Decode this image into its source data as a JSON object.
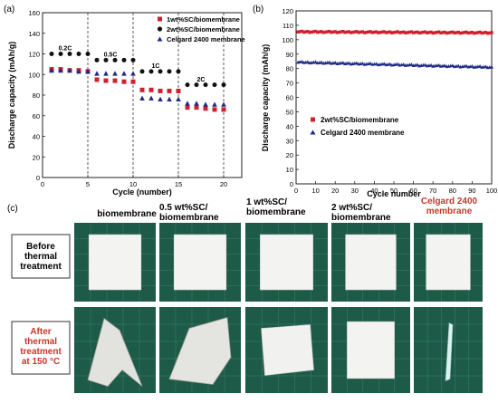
{
  "panels": {
    "a": "(a)",
    "b": "(b)",
    "c": "(c)"
  },
  "colors": {
    "sc1": "#d0202e",
    "sc2": "#111111",
    "celgard": "#1e2a86",
    "mat": "#1d5a48",
    "red_text": "#c0392b"
  },
  "chart_data": [
    {
      "type": "scatter",
      "xlabel": "Cycle (number)",
      "ylabel": "Discharge capacity (mAh/g)",
      "xlim": [
        0,
        22
      ],
      "ylim": [
        0,
        160
      ],
      "xticks": [
        0,
        5,
        10,
        15,
        20
      ],
      "yticks": [
        0,
        20,
        40,
        60,
        80,
        100,
        120,
        140,
        160
      ],
      "grid": false,
      "legend_position": "top-right",
      "rate_labels": [
        {
          "text": "0.2C",
          "x": 2.5,
          "y": 126
        },
        {
          "text": "0.5C",
          "x": 7.5,
          "y": 120
        },
        {
          "text": "1C",
          "x": 12.5,
          "y": 109
        },
        {
          "text": "2C",
          "x": 17.5,
          "y": 96
        }
      ],
      "dividers": [
        5,
        10,
        15,
        20
      ],
      "series": [
        {
          "name": "1wt%SC/biomembrane",
          "marker": "square",
          "color": "#d0202e",
          "x": [
            1,
            2,
            3,
            4,
            5,
            6,
            7,
            8,
            9,
            10,
            11,
            12,
            13,
            14,
            15,
            16,
            17,
            18,
            19,
            20
          ],
          "y": [
            105,
            105,
            104,
            104,
            103,
            95,
            94,
            94,
            93,
            93,
            85,
            85,
            84,
            84,
            84,
            68,
            68,
            67,
            66,
            66
          ]
        },
        {
          "name": "2wt%SC/biomembrane",
          "marker": "circle",
          "color": "#111111",
          "x": [
            1,
            2,
            3,
            4,
            5,
            6,
            7,
            8,
            9,
            10,
            11,
            12,
            13,
            14,
            15,
            16,
            17,
            18,
            19,
            20
          ],
          "y": [
            120,
            120,
            120,
            120,
            120,
            114,
            114,
            114,
            114,
            114,
            103,
            103,
            103,
            103,
            103,
            90,
            90,
            90,
            90,
            90
          ]
        },
        {
          "name": "Celgard 2400 membrane",
          "marker": "triangle",
          "color": "#1e2a86",
          "x": [
            1,
            2,
            3,
            4,
            5,
            6,
            7,
            8,
            9,
            10,
            11,
            12,
            13,
            14,
            15,
            16,
            17,
            18,
            19,
            20
          ],
          "y": [
            104,
            104,
            104,
            103,
            103,
            101,
            101,
            101,
            101,
            101,
            77,
            77,
            76,
            76,
            76,
            72,
            72,
            71,
            71,
            71
          ]
        }
      ]
    },
    {
      "type": "scatter",
      "xlabel": "Cycle number",
      "ylabel": "Discharge capacity (mAh/g)",
      "xlim": [
        0,
        100
      ],
      "ylim": [
        0,
        120
      ],
      "xticks": [
        0,
        10,
        20,
        30,
        40,
        50,
        60,
        70,
        80,
        90,
        100
      ],
      "yticks": [
        0,
        10,
        20,
        30,
        40,
        50,
        60,
        70,
        80,
        90,
        100,
        110,
        120
      ],
      "grid": false,
      "legend_position": "center-left",
      "series": [
        {
          "name": "2wt%SC/biomembrane",
          "marker": "square",
          "color": "#d0202e",
          "x_range": [
            1,
            100
          ],
          "y_start": 105.5,
          "y_end": 104.8
        },
        {
          "name": "Celgard 2400 membrane",
          "marker": "triangle",
          "color": "#1e2a86",
          "x_range": [
            1,
            100
          ],
          "y_start": 84.5,
          "y_end": 81.0
        }
      ]
    }
  ],
  "photos": {
    "columns": [
      {
        "label": "biomembrane",
        "red": false
      },
      {
        "label": "0.5 wt%SC/ biomembrane",
        "red": false
      },
      {
        "label": "1 wt%SC/ biomembrane",
        "red": false
      },
      {
        "label": "2 wt%SC/ biomembrane",
        "red": false
      },
      {
        "label": "Celgard 2400 membrane",
        "red": true
      }
    ],
    "rows": [
      {
        "label": "Before thermal treatment",
        "red": false
      },
      {
        "label": "After thermal treatment at 150 °C",
        "red": true
      }
    ]
  }
}
